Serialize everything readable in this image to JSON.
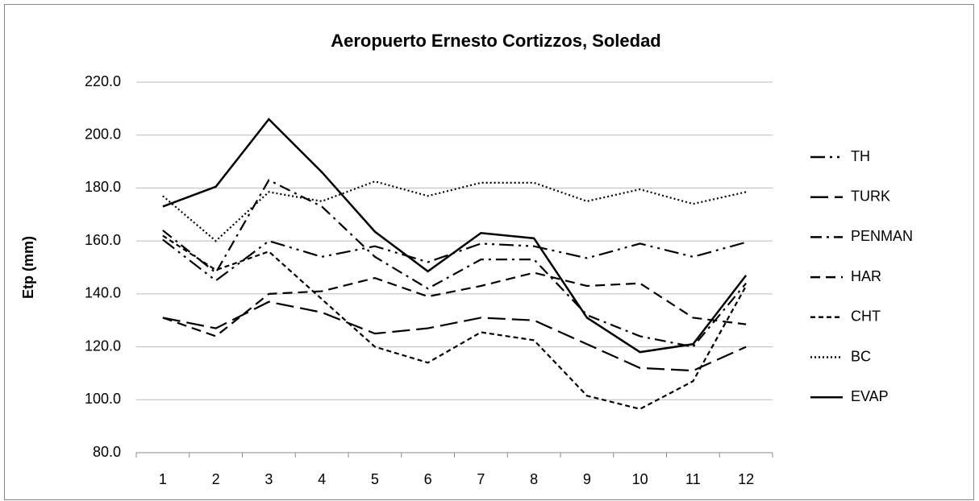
{
  "chart_data": {
    "type": "line",
    "title": "Aeropuerto Ernesto Cortizzos, Soledad",
    "y_label": "Etp (mm)",
    "categories": [
      "1",
      "2",
      "3",
      "4",
      "5",
      "6",
      "7",
      "8",
      "9",
      "10",
      "11",
      "12"
    ],
    "ylim": [
      80,
      220
    ],
    "yticks": [
      {
        "value": 80,
        "label": "80.0"
      },
      {
        "value": 100,
        "label": "100.0"
      },
      {
        "value": 120,
        "label": "120.0"
      },
      {
        "value": 140,
        "label": "140.0"
      },
      {
        "value": 160,
        "label": "160.0"
      },
      {
        "value": 180,
        "label": "180.0"
      },
      {
        "value": 200,
        "label": "200.0"
      },
      {
        "value": 220,
        "label": "220.0"
      }
    ],
    "grid": true,
    "legend": "right",
    "series": [
      {
        "name": "TH",
        "color": "#000000",
        "dash": "18,6,3,6,3,6",
        "values": [
          160.5,
          145,
          160,
          154,
          158,
          152,
          159,
          158,
          153.5,
          159,
          154,
          159.5
        ]
      },
      {
        "name": "TURK",
        "color": "#000000",
        "dash": "22,8",
        "values": [
          131,
          127,
          137,
          133,
          125,
          127,
          131,
          130,
          121,
          112,
          111,
          120
        ]
      },
      {
        "name": "PENMAN",
        "color": "#000000",
        "dash": "14,6,3,6",
        "values": [
          164,
          148,
          183,
          173,
          154,
          142,
          153,
          153,
          132,
          124,
          120,
          144
        ]
      },
      {
        "name": "HAR",
        "color": "#000000",
        "dash": "12,7",
        "values": [
          131,
          124,
          140,
          141,
          146,
          139,
          143,
          148,
          143,
          144,
          131,
          128.5
        ]
      },
      {
        "name": "CHT",
        "color": "#000000",
        "dash": "6,4",
        "values": [
          162,
          149,
          156,
          138,
          120,
          114,
          125.5,
          122.5,
          101.5,
          96.5,
          107,
          143
        ]
      },
      {
        "name": "BC",
        "color": "#000000",
        "dash": "2,3",
        "values": [
          177,
          160,
          178.5,
          175,
          182.5,
          177,
          182,
          182,
          175,
          179.5,
          174,
          178.5
        ]
      },
      {
        "name": "EVAP",
        "color": "#000000",
        "dash": "none",
        "values": [
          173,
          180.5,
          206,
          186,
          163.5,
          148.5,
          163,
          161,
          131,
          118,
          121,
          147
        ]
      }
    ]
  }
}
